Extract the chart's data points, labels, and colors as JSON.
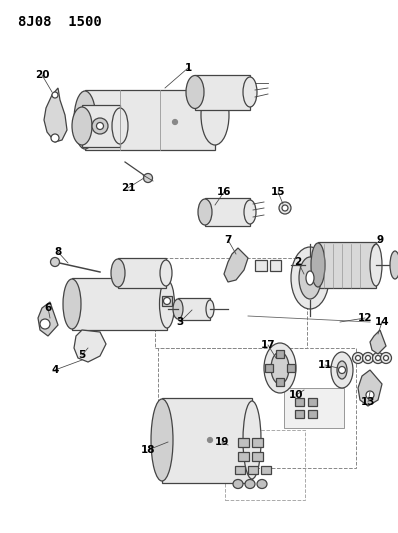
{
  "title": "8J08  1500",
  "bg_color": "#ffffff",
  "line_color": "#444444",
  "label_color": "#000000",
  "title_fontsize": 10,
  "label_fontsize": 7.5,
  "fig_width": 3.98,
  "fig_height": 5.33,
  "dpi": 100
}
